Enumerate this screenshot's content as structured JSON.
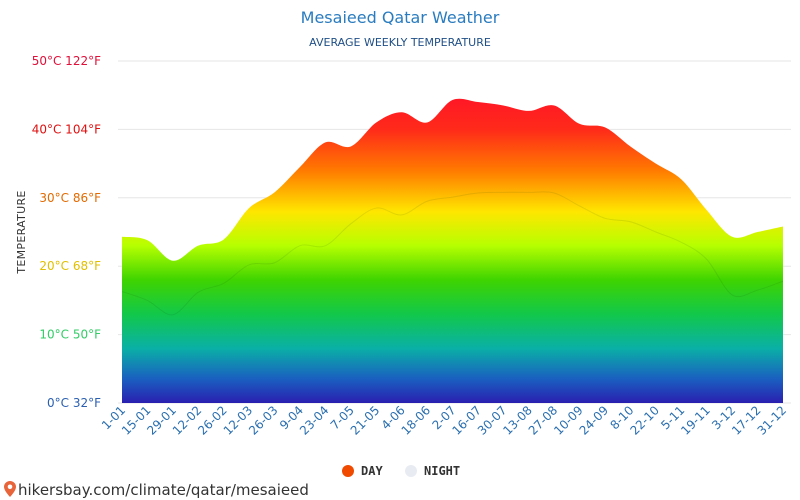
{
  "chart_data": {
    "type": "area",
    "title": "Mesaieed Qatar Weather",
    "subtitle": "AVERAGE WEEKLY TEMPERATURE",
    "ylabel": "TEMPERATURE",
    "ylim": [
      0,
      50
    ],
    "y_ticks": [
      {
        "value": 0,
        "label": "0°C 32°F",
        "color": "#2a5fb0"
      },
      {
        "value": 10,
        "label": "10°C 50°F",
        "color": "#33cc66"
      },
      {
        "value": 20,
        "label": "20°C 68°F",
        "color": "#e0c000"
      },
      {
        "value": 30,
        "label": "30°C 86°F",
        "color": "#e36a00"
      },
      {
        "value": 40,
        "label": "40°C 104°F",
        "color": "#e01010"
      },
      {
        "value": 50,
        "label": "50°C 122°F",
        "color": "#e0103a"
      }
    ],
    "categories": [
      "1-01",
      "15-01",
      "29-01",
      "12-02",
      "26-02",
      "12-03",
      "26-03",
      "9-04",
      "23-04",
      "7-05",
      "21-05",
      "4-06",
      "18-06",
      "2-07",
      "16-07",
      "30-07",
      "13-08",
      "27-08",
      "10-09",
      "24-09",
      "8-10",
      "22-10",
      "5-11",
      "19-11",
      "3-12",
      "17-12",
      "31-12"
    ],
    "series": [
      {
        "name": "DAY",
        "color": "#f04a00",
        "values": [
          24.3,
          23.8,
          20.8,
          23.0,
          23.9,
          28.5,
          30.8,
          34.5,
          38.1,
          37.5,
          41.0,
          42.5,
          41.0,
          44.3,
          44.0,
          43.5,
          42.7,
          43.5,
          40.8,
          40.3,
          37.5,
          35.0,
          32.7,
          28.2,
          24.3,
          25.0,
          25.8
        ]
      },
      {
        "name": "NIGHT",
        "color": "#e8ecf2",
        "values": [
          16.3,
          15.0,
          12.9,
          16.2,
          17.5,
          20.2,
          20.5,
          23.0,
          23.0,
          26.2,
          28.5,
          27.5,
          29.5,
          30.1,
          30.7,
          30.8,
          30.8,
          30.7,
          28.8,
          27.0,
          26.5,
          25.0,
          23.5,
          21.0,
          15.8,
          16.5,
          17.8
        ]
      }
    ],
    "legend": [
      {
        "label": "DAY",
        "color": "#f04a00"
      },
      {
        "label": "NIGHT",
        "color": "#e8ecf2"
      }
    ],
    "legend_position": "bottom-center",
    "grid": true
  },
  "footer": {
    "text": "hikersbay.com/climate/qatar/mesaieed",
    "icon": "map-pin-icon",
    "icon_color": "#e8643a"
  }
}
